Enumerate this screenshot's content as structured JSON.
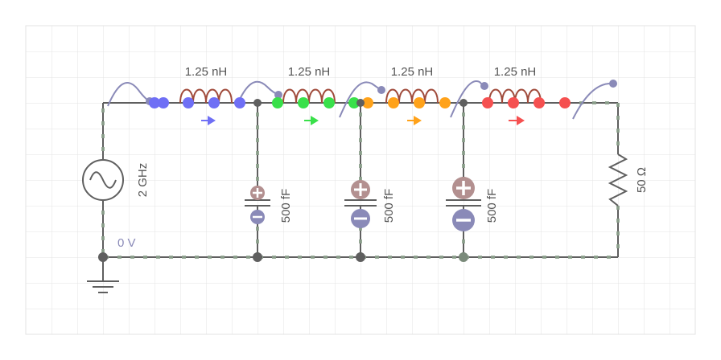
{
  "circuit": {
    "source": {
      "frequency_label": "2 GHz",
      "ground_voltage_label": "0 V",
      "icon": "ac-source-icon"
    },
    "inductors": [
      {
        "label": "1.25 nH",
        "current_direction": "left",
        "color": "#6f6ff5"
      },
      {
        "label": "1.25 nH",
        "current_direction": "left",
        "color": "#39e04a"
      },
      {
        "label": "1.25 nH",
        "current_direction": "left",
        "color": "#ffa21a"
      },
      {
        "label": "1.25 nH",
        "current_direction": "right",
        "color": "#f55050"
      }
    ],
    "capacitors": [
      {
        "label": "500 fF"
      },
      {
        "label": "500 fF"
      },
      {
        "label": "500 fF"
      }
    ],
    "resistor": {
      "label": "50 Ω"
    },
    "colors": {
      "grid": "#e2e2e2",
      "wire": "#606060",
      "current_dots": "#8a9a8a",
      "voltage_probe": "#8a8ab8",
      "capacitor_positive": "#b39090",
      "capacitor_negative": "#8a8ab8"
    }
  }
}
